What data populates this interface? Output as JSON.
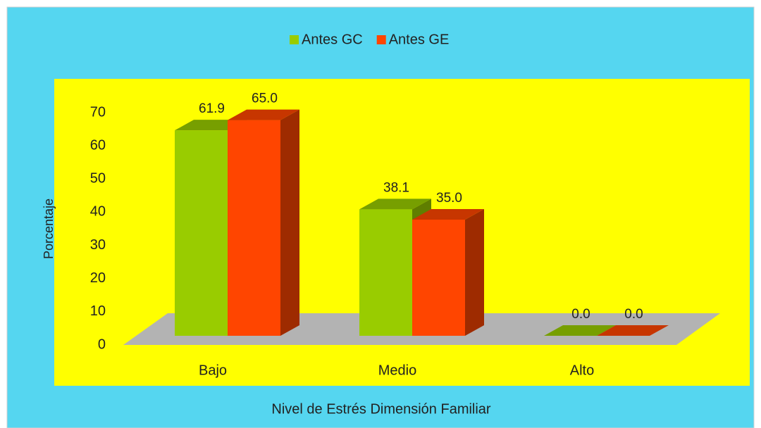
{
  "chart_data": {
    "type": "bar3d",
    "x_label": "Nivel de Estrés Dimensión Familiar",
    "y_label": "Porcentaje",
    "categories": [
      "Bajo",
      "Medio",
      "Alto"
    ],
    "series": [
      {
        "name": "Antes GC",
        "color": "#99cc00",
        "values": [
          61.9,
          38.1,
          0
        ],
        "value_labels": [
          "61.9",
          "38.1",
          "0.0"
        ]
      },
      {
        "name": "Antes GE",
        "color": "#ff4500",
        "values": [
          65,
          35,
          0
        ],
        "value_labels": [
          "65.0",
          "35.0",
          "0.0"
        ]
      }
    ],
    "ylim": [
      0,
      70
    ],
    "yticks": [
      0,
      10,
      20,
      30,
      40,
      50,
      60,
      70
    ],
    "legend": "top",
    "grid": false
  }
}
